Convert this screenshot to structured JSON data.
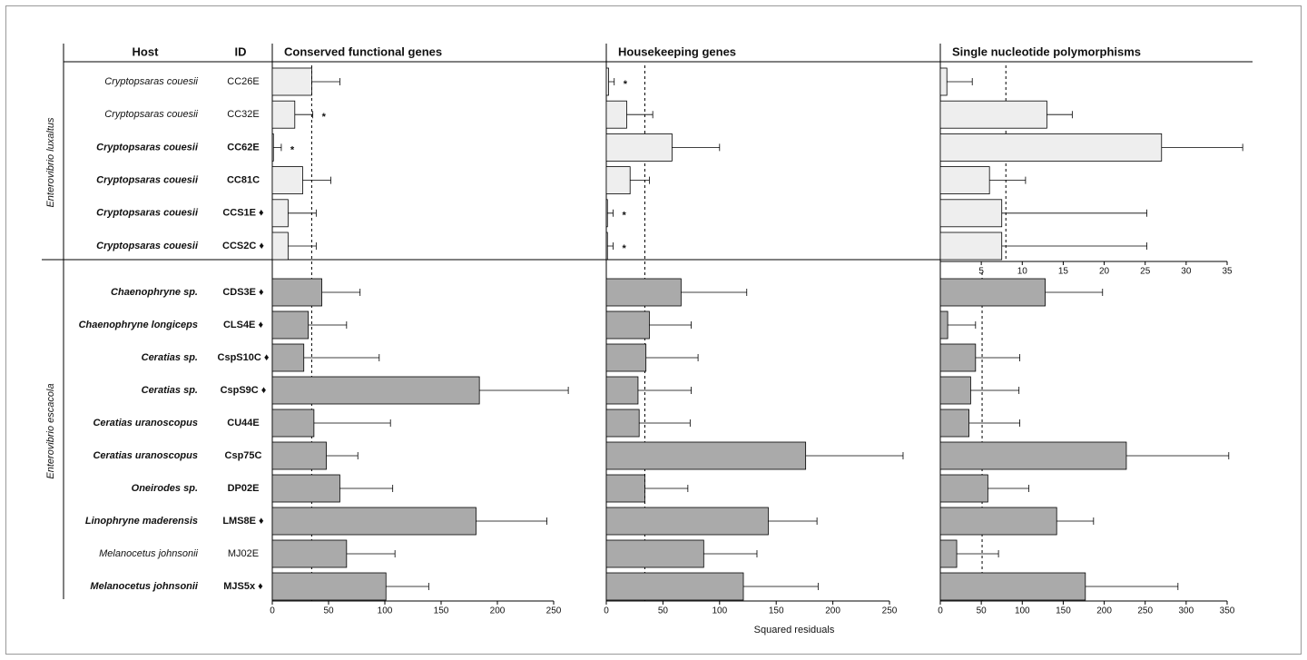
{
  "table": {
    "headers": [
      "Host",
      "ID"
    ],
    "groups": [
      {
        "name": "Enterovibrio luxaltus",
        "color": "#eeeeee",
        "rows": [
          {
            "host": "Cryptopsaras couesii",
            "id": "CC26E",
            "bold": false
          },
          {
            "host": "Cryptopsaras couesii",
            "id": "CC32E",
            "bold": false
          },
          {
            "host": "Cryptopsaras couesii",
            "id": "CC62E",
            "bold": true
          },
          {
            "host": "Cryptopsaras couesii",
            "id": "CC81C",
            "bold": true
          },
          {
            "host": "Cryptopsaras couesii",
            "id": "CCS1E ♦",
            "bold": true
          },
          {
            "host": "Cryptopsaras couesii",
            "id": "CCS2C ♦",
            "bold": true
          }
        ]
      },
      {
        "name": "Enterovibrio escacola",
        "color": "#aaaaaa",
        "rows": [
          {
            "host": "Chaenophryne sp.",
            "id": "CDS3E ♦",
            "bold": true
          },
          {
            "host": "Chaenophryne longiceps",
            "id": "CLS4E ♦",
            "bold": true
          },
          {
            "host": "Ceratias sp.",
            "id": "CspS10C ♦",
            "bold": true
          },
          {
            "host": "Ceratias sp.",
            "id": "CspS9C ♦",
            "bold": true
          },
          {
            "host": "Ceratias uranoscopus",
            "id": "CU44E",
            "bold": true
          },
          {
            "host": "Ceratias uranoscopus",
            "id": "Csp75C",
            "bold": true
          },
          {
            "host": "Oneirodes sp.",
            "id": "DP02E",
            "bold": true
          },
          {
            "host": "Linophryne maderensis",
            "id": "LMS8E ♦",
            "bold": true
          },
          {
            "host": "Melanocetus johnsonii",
            "id": "MJ02E",
            "bold": false
          },
          {
            "host": "Melanocetus johnsonii",
            "id": "MJS5x ♦",
            "bold": true
          }
        ]
      }
    ]
  },
  "x_label": "Squared residuals",
  "chart_data": [
    {
      "type": "bar",
      "title": "Conserved functional genes",
      "xlim": [
        0,
        250
      ],
      "xticks": [
        0,
        50,
        100,
        150,
        200,
        250
      ],
      "reference_line": 35,
      "sections": [
        {
          "values": [
            35,
            20,
            1,
            27,
            14,
            14
          ],
          "errors": [
            25,
            16,
            7,
            25,
            25,
            25
          ],
          "flags": [
            null,
            "*",
            "*",
            null,
            null,
            null
          ]
        },
        {
          "values": [
            44,
            32,
            28,
            184,
            37,
            48,
            60,
            181,
            66,
            101
          ],
          "errors": [
            34,
            34,
            67,
            79,
            68,
            28,
            47,
            63,
            43,
            38
          ]
        }
      ]
    },
    {
      "type": "bar",
      "title": "Housekeeping genes",
      "xlim": [
        0,
        250
      ],
      "xticks": [
        0,
        50,
        100,
        150,
        200,
        250
      ],
      "reference_line": 34,
      "sections": [
        {
          "values": [
            2,
            18,
            58,
            21,
            1,
            1
          ],
          "errors": [
            5,
            23,
            42,
            17,
            5,
            5
          ],
          "flags": [
            "*",
            null,
            null,
            null,
            "*",
            "*"
          ]
        },
        {
          "values": [
            66,
            38,
            35,
            28,
            29,
            176,
            34,
            143,
            86,
            121
          ],
          "errors": [
            58,
            37,
            46,
            47,
            45,
            86,
            38,
            43,
            47,
            66
          ]
        }
      ]
    },
    {
      "type": "bar",
      "title": "Single nucleotide polymorphisms",
      "sections": [
        {
          "xlim": [
            0,
            35
          ],
          "xticks": [
            5,
            10,
            15,
            20,
            25,
            30,
            35
          ],
          "reference_line": 8,
          "values": [
            0.8,
            13,
            27,
            6,
            7.5,
            7.5
          ],
          "errors": [
            3.1,
            3.1,
            9.9,
            4.4,
            17.7,
            17.7
          ]
        },
        {
          "xlim": [
            0,
            350
          ],
          "xticks": [
            0,
            50,
            100,
            150,
            200,
            250,
            300,
            350
          ],
          "reference_line": 51,
          "values": [
            128,
            9,
            43,
            37,
            35,
            227,
            58,
            142,
            20,
            177
          ],
          "errors": [
            70,
            34,
            54,
            59,
            62,
            125,
            50,
            45,
            51,
            113
          ]
        }
      ]
    }
  ]
}
